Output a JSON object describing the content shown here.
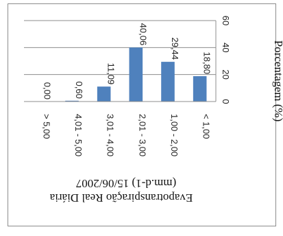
{
  "chart_data": {
    "type": "bar",
    "orientation": "vertical",
    "rotated_view": "90deg-clockwise",
    "categories": [
      "> 5,00",
      "4,01 - 5,00",
      "3,01 - 4,00",
      "2,01 - 3,00",
      "1,00 - 2,00",
      "< 1,00"
    ],
    "values": [
      0.0,
      0.6,
      11.09,
      40.06,
      29.44,
      18.8
    ],
    "value_labels": [
      "0,00",
      "0,60",
      "11,09",
      "40,06",
      "29,44",
      "18,80"
    ],
    "xlabel": "Evapotranspiração Real Diária",
    "xlabel_line2": "(mm.d-1) 15/06/2007",
    "ylabel": "Porcentagem (%)",
    "ylim": [
      0,
      60
    ],
    "yticks": [
      0,
      20,
      40,
      60
    ],
    "ytick_labels": [
      "0",
      "20",
      "40",
      "60"
    ],
    "grid": true,
    "bar_color": "#4f81bd"
  }
}
